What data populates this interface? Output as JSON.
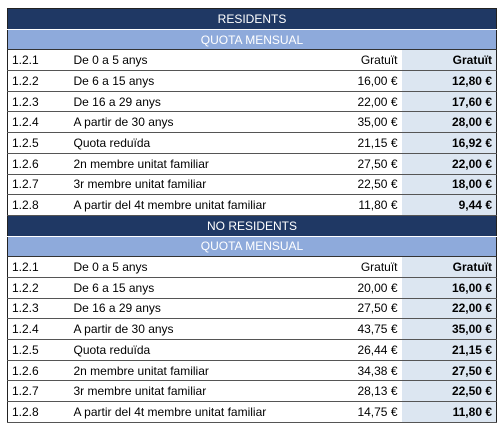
{
  "sections": [
    {
      "title": "RESIDENTS",
      "subtitle": "QUOTA MENSUAL",
      "rows": [
        [
          "1.2.1",
          "De 0 a 5 anys",
          "Gratuït",
          "Gratuït"
        ],
        [
          "1.2.2",
          "De 6 a 15 anys",
          "16,00 €",
          "12,80 €"
        ],
        [
          "1.2.3",
          "De 16 a 29 anys",
          "22,00 €",
          "17,60 €"
        ],
        [
          "1.2.4",
          "A partir de 30 anys",
          "35,00 €",
          "28,00 €"
        ],
        [
          "1.2.5",
          "Quota reduïda",
          "21,15 €",
          "16,92 €"
        ],
        [
          "1.2.6",
          "2n membre unitat familiar",
          "27,50 €",
          "22,00 €"
        ],
        [
          "1.2.7",
          "3r membre unitat familiar",
          "22,50 €",
          "18,00 €"
        ],
        [
          "1.2.8",
          "A partir del 4t membre unitat familiar",
          "11,80 €",
          "9,44 €"
        ]
      ]
    },
    {
      "title": "NO RESIDENTS",
      "subtitle": "QUOTA MENSUAL",
      "rows": [
        [
          "1.2.1",
          "De 0 a 5 anys",
          "Gratuït",
          "Gratuït"
        ],
        [
          "1.2.2",
          "De 6 a 15 anys",
          "20,00 €",
          "16,00 €"
        ],
        [
          "1.2.3",
          "De 16 a 29 anys",
          "27,50 €",
          "22,00 €"
        ],
        [
          "1.2.4",
          "A partir de 30 anys",
          "43,75 €",
          "35,00 €"
        ],
        [
          "1.2.5",
          "Quota reduïda",
          "26,44 €",
          "21,15 €"
        ],
        [
          "1.2.6",
          "2n membre unitat familiar",
          "34,38 €",
          "27,50 €"
        ],
        [
          "1.2.7",
          "3r membre unitat familiar",
          "28,13 €",
          "22,50 €"
        ],
        [
          "1.2.8",
          "A partir del 4t membre unitat familiar",
          "14,75 €",
          "11,80 €"
        ]
      ]
    }
  ]
}
